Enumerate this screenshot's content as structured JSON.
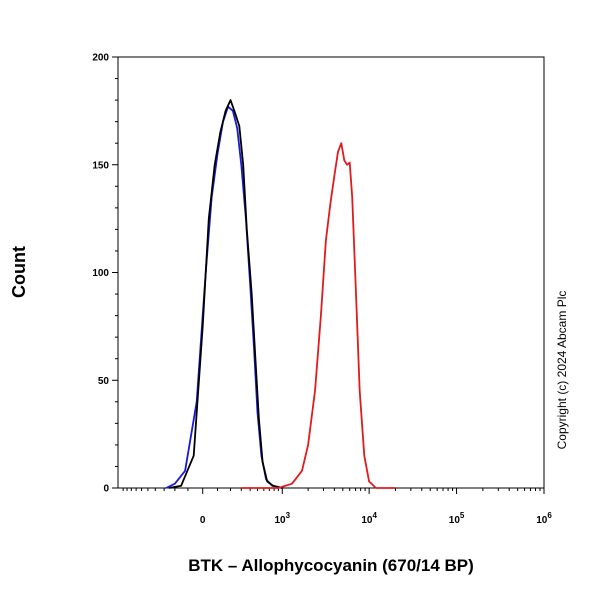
{
  "chart_data": {
    "type": "line",
    "title": "",
    "xlabel": "BTK – Allophycocyanin (670/14 BP)",
    "ylabel": "Count",
    "ylim": [
      0,
      200
    ],
    "xscale": "biexponential",
    "y_ticks": [
      {
        "value": 0,
        "label": "0"
      },
      {
        "value": 50,
        "label": "50"
      },
      {
        "value": 100,
        "label": "100"
      },
      {
        "value": 150,
        "label": "150"
      },
      {
        "value": 200,
        "label": "200"
      }
    ],
    "x_ticks": [
      {
        "value": 0,
        "base": "0",
        "exp": ""
      },
      {
        "value": 1000,
        "base": "10",
        "exp": "3"
      },
      {
        "value": 10000,
        "base": "10",
        "exp": "4"
      },
      {
        "value": 100000,
        "base": "10",
        "exp": "5"
      },
      {
        "value": 1000000,
        "base": "10",
        "exp": "6"
      }
    ],
    "series": [
      {
        "name": "blue",
        "color": "#1a1ad6",
        "points": [
          [
            -280,
            0
          ],
          [
            -200,
            2
          ],
          [
            -120,
            8
          ],
          [
            -40,
            40
          ],
          [
            20,
            100
          ],
          [
            60,
            135
          ],
          [
            100,
            155
          ],
          [
            140,
            170
          ],
          [
            180,
            177
          ],
          [
            220,
            175
          ],
          [
            260,
            167
          ],
          [
            300,
            150
          ],
          [
            350,
            125
          ],
          [
            400,
            95
          ],
          [
            450,
            65
          ],
          [
            500,
            35
          ],
          [
            560,
            15
          ],
          [
            640,
            4
          ],
          [
            760,
            1
          ],
          [
            1000,
            0
          ]
        ]
      },
      {
        "name": "black",
        "color": "#000000",
        "points": [
          [
            -250,
            0
          ],
          [
            -150,
            1
          ],
          [
            -60,
            15
          ],
          [
            0,
            75
          ],
          [
            40,
            125
          ],
          [
            80,
            150
          ],
          [
            120,
            165
          ],
          [
            160,
            175
          ],
          [
            200,
            180
          ],
          [
            240,
            174
          ],
          [
            280,
            168
          ],
          [
            320,
            150
          ],
          [
            360,
            120
          ],
          [
            420,
            90
          ],
          [
            470,
            60
          ],
          [
            520,
            32
          ],
          [
            580,
            12
          ],
          [
            660,
            3
          ],
          [
            780,
            1
          ],
          [
            1000,
            0
          ]
        ]
      },
      {
        "name": "red",
        "color": "#e01b1b",
        "points": [
          [
            300,
            0
          ],
          [
            900,
            0
          ],
          [
            1300,
            2
          ],
          [
            1700,
            8
          ],
          [
            2000,
            20
          ],
          [
            2400,
            45
          ],
          [
            2800,
            80
          ],
          [
            3200,
            115
          ],
          [
            3600,
            132
          ],
          [
            4000,
            145
          ],
          [
            4400,
            156
          ],
          [
            4800,
            160
          ],
          [
            5200,
            152
          ],
          [
            5600,
            150
          ],
          [
            6000,
            151
          ],
          [
            6400,
            135
          ],
          [
            7000,
            95
          ],
          [
            7800,
            45
          ],
          [
            8800,
            15
          ],
          [
            10000,
            3
          ],
          [
            12000,
            0
          ],
          [
            20000,
            0
          ]
        ]
      }
    ]
  },
  "copyright": "Copyright (c) 2024 Abcam Plc"
}
